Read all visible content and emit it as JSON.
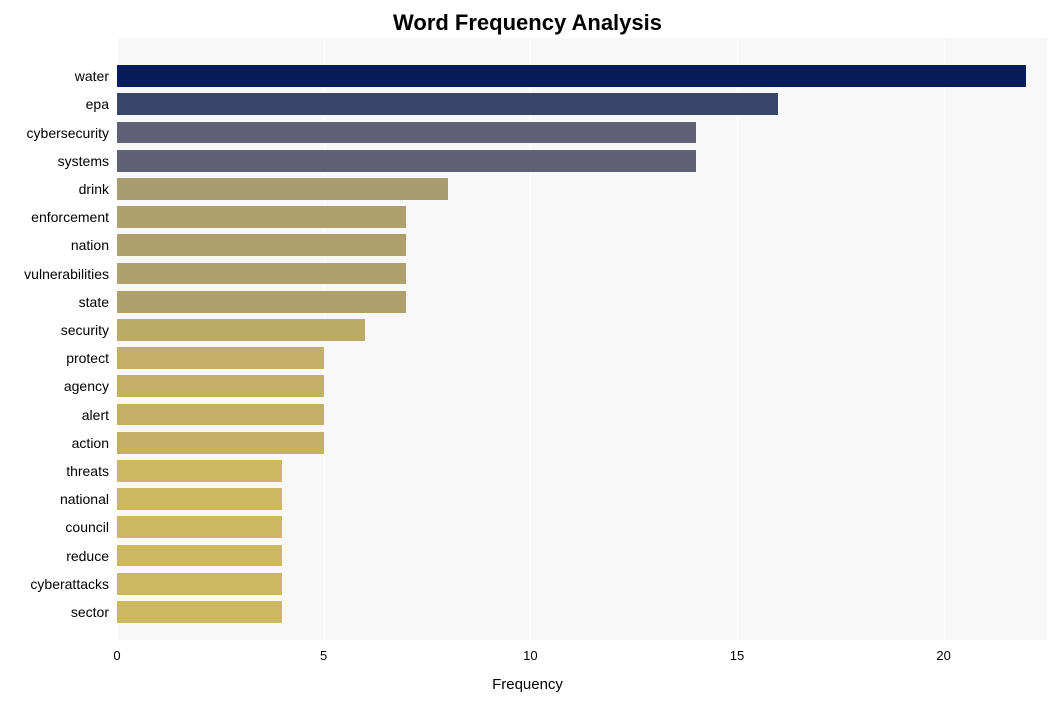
{
  "chart": {
    "type": "bar",
    "orientation": "horizontal",
    "title": "Word Frequency Analysis",
    "title_fontsize": 22,
    "title_fontweight": "bold",
    "xlabel": "Frequency",
    "xlabel_fontsize": 15,
    "ylabel_fontsize": 14,
    "xtick_fontsize": 13,
    "xlim": [
      0,
      22.5
    ],
    "xtick_step": 5,
    "xticks": [
      0,
      5,
      10,
      15,
      20
    ],
    "background_color": "#ffffff",
    "plot_background_color": "#f8f8f8",
    "grid_color": "#ffffff",
    "bar_height_ratio": 0.78,
    "categories": [
      "water",
      "epa",
      "cybersecurity",
      "systems",
      "drink",
      "enforcement",
      "nation",
      "vulnerabilities",
      "state",
      "security",
      "protect",
      "agency",
      "alert",
      "action",
      "threats",
      "national",
      "council",
      "reduce",
      "cyberattacks",
      "sector"
    ],
    "values": [
      22,
      16,
      14,
      14,
      8,
      7,
      7,
      7,
      7,
      6,
      5,
      5,
      5,
      5,
      4,
      4,
      4,
      4,
      4,
      4
    ],
    "bar_colors": [
      "#081d58",
      "#384669",
      "#606177",
      "#606177",
      "#a89b6f",
      "#af9f6a",
      "#af9f6a",
      "#af9f6a",
      "#af9f6a",
      "#bcab67",
      "#c3b065",
      "#c3b065",
      "#c3b065",
      "#c3b065",
      "#ccb862",
      "#ccb862",
      "#ccb862",
      "#ccb862",
      "#ccb862",
      "#ccb862"
    ]
  }
}
